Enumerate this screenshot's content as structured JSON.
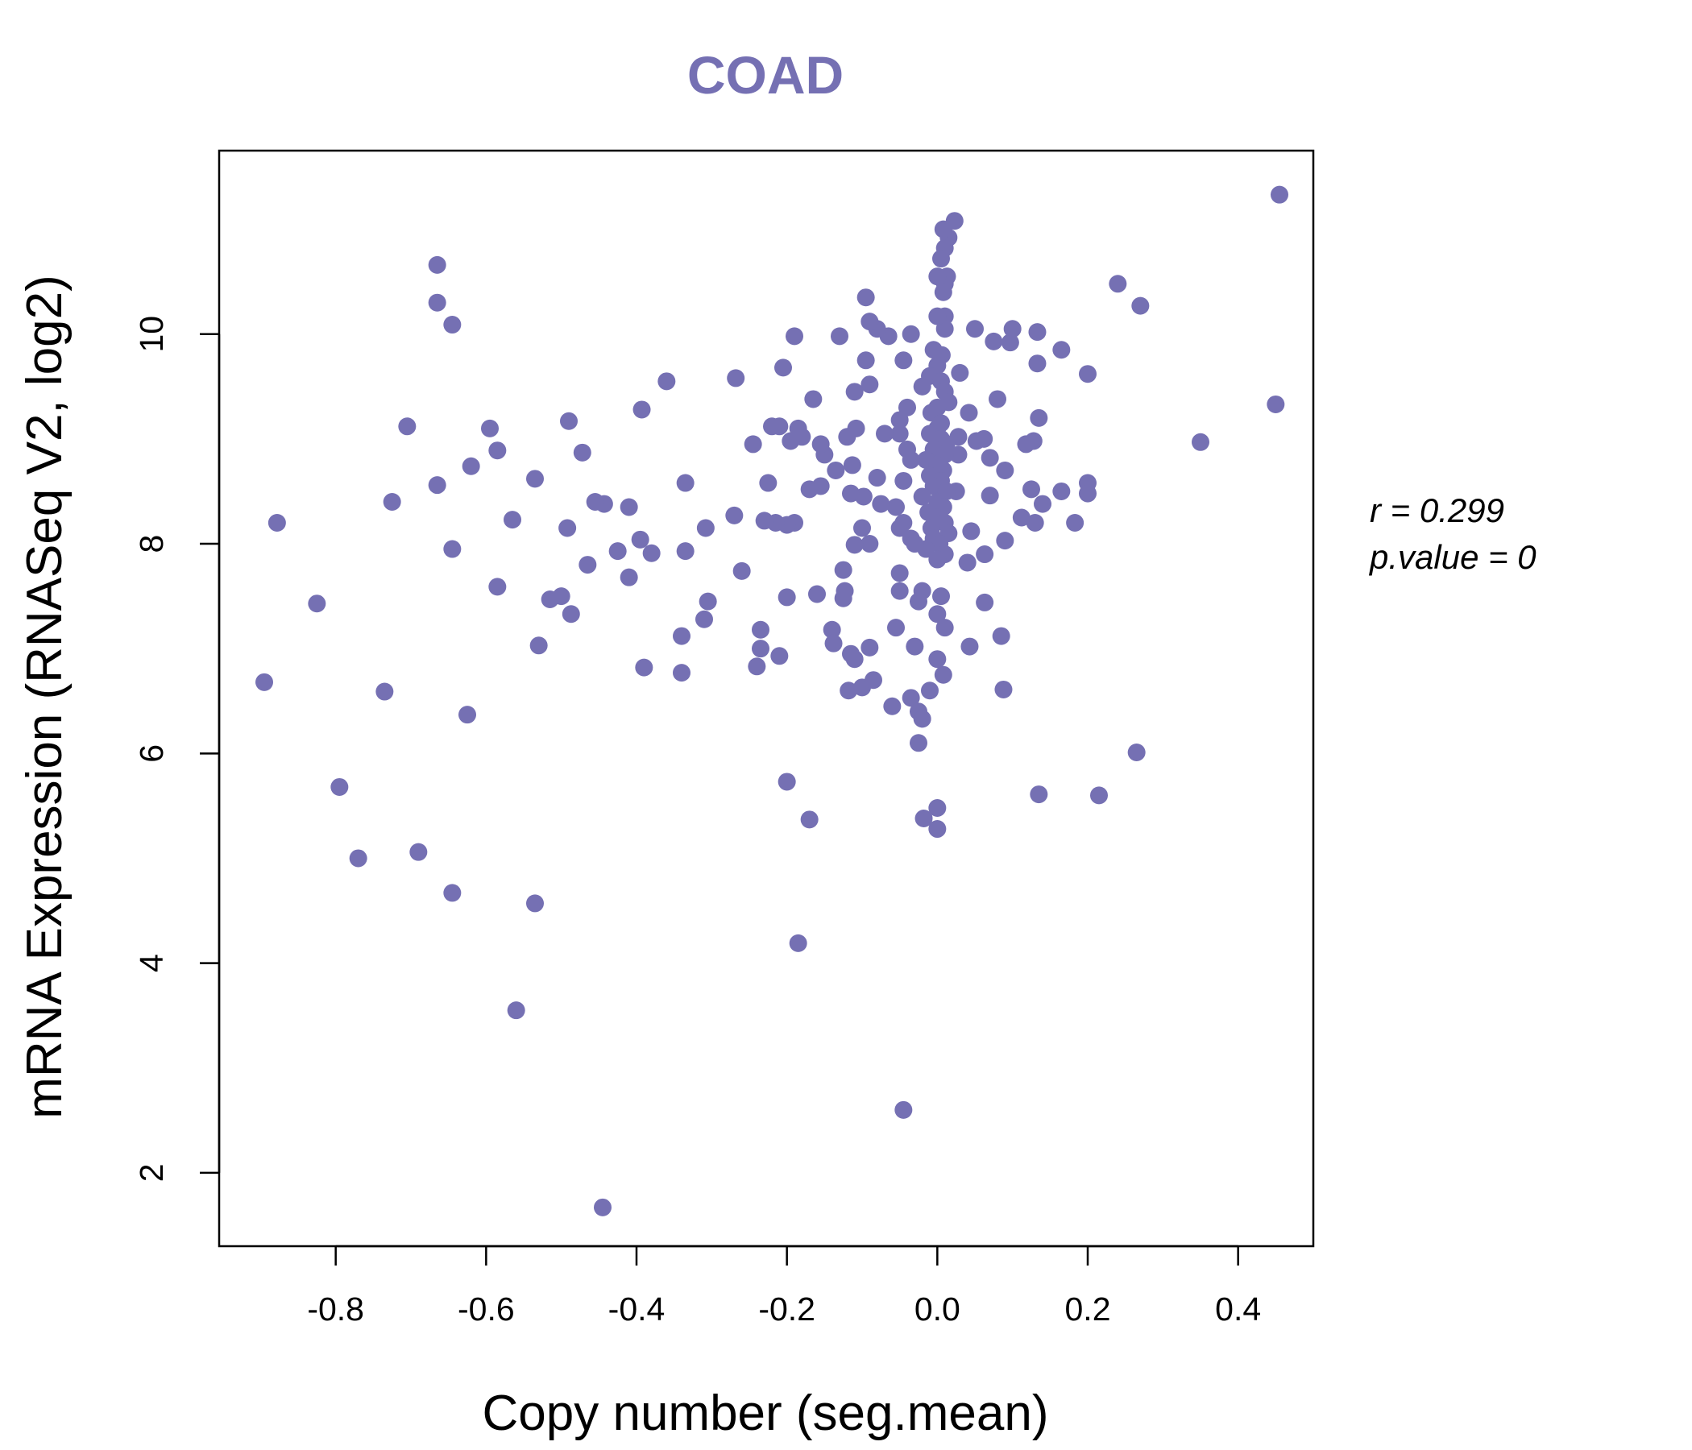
{
  "colors": {
    "point": "#7570b3",
    "title": "#7570b3",
    "axis": "#000000",
    "background": "#ffffff"
  },
  "stats": {
    "r_label": "r = 0.299",
    "p_label": "p.value = 0"
  },
  "chart_data": {
    "type": "scatter",
    "title": "COAD",
    "xlabel": "Copy number (seg.mean)",
    "ylabel": "mRNA Expression (RNASeq V2, log2)",
    "xlim": [
      -0.955,
      0.5
    ],
    "ylim": [
      1.3,
      11.75
    ],
    "xticks": [
      -0.8,
      -0.6,
      -0.4,
      -0.2,
      0.0,
      0.2,
      0.4
    ],
    "xtick_labels": [
      "-0.8",
      "-0.6",
      "-0.4",
      "-0.2",
      "0.0",
      "0.2",
      "0.4"
    ],
    "yticks": [
      2,
      4,
      6,
      8,
      10
    ],
    "ytick_labels": [
      "2",
      "4",
      "6",
      "8",
      "10"
    ],
    "grid": false,
    "points": [
      [
        0.455,
        11.33
      ],
      [
        0.45,
        9.33
      ],
      [
        0.35,
        8.97
      ],
      [
        0.27,
        10.27
      ],
      [
        0.24,
        10.48
      ],
      [
        0.265,
        6.01
      ],
      [
        0.215,
        5.6
      ],
      [
        0.2,
        9.62
      ],
      [
        0.2,
        8.58
      ],
      [
        0.2,
        8.48
      ],
      [
        0.183,
        8.2
      ],
      [
        0.165,
        9.85
      ],
      [
        0.165,
        8.5
      ],
      [
        0.14,
        8.38
      ],
      [
        0.133,
        10.02
      ],
      [
        0.133,
        9.72
      ],
      [
        0.135,
        9.2
      ],
      [
        0.128,
        8.98
      ],
      [
        0.125,
        8.52
      ],
      [
        0.13,
        8.2
      ],
      [
        0.118,
        8.95
      ],
      [
        0.112,
        8.25
      ],
      [
        0.135,
        5.61
      ],
      [
        0.1,
        10.05
      ],
      [
        0.097,
        9.92
      ],
      [
        0.09,
        8.7
      ],
      [
        0.09,
        8.03
      ],
      [
        0.085,
        7.12
      ],
      [
        0.088,
        6.61
      ],
      [
        0.08,
        9.38
      ],
      [
        0.075,
        9.93
      ],
      [
        0.07,
        8.82
      ],
      [
        0.07,
        8.46
      ],
      [
        0.062,
        9.0
      ],
      [
        0.063,
        7.9
      ],
      [
        0.063,
        7.44
      ],
      [
        0.05,
        10.05
      ],
      [
        0.052,
        8.98
      ],
      [
        0.045,
        8.12
      ],
      [
        0.043,
        7.02
      ],
      [
        0.042,
        9.25
      ],
      [
        0.04,
        7.82
      ],
      [
        0.03,
        9.63
      ],
      [
        0.028,
        9.02
      ],
      [
        0.028,
        8.85
      ],
      [
        0.025,
        8.5
      ],
      [
        0.023,
        11.08
      ],
      [
        0.015,
        10.92
      ],
      [
        0.013,
        10.55
      ],
      [
        0.01,
        10.48
      ],
      [
        0.008,
        11.0
      ],
      [
        0.01,
        10.82
      ],
      [
        0.005,
        10.72
      ],
      [
        0.0,
        10.55
      ],
      [
        0.008,
        10.4
      ],
      [
        0.01,
        10.17
      ],
      [
        0.01,
        10.05
      ],
      [
        0.0,
        10.17
      ],
      [
        0.006,
        9.8
      ],
      [
        0.0,
        9.7
      ],
      [
        -0.005,
        9.85
      ],
      [
        -0.01,
        9.6
      ],
      [
        0.005,
        9.55
      ],
      [
        0.01,
        9.45
      ],
      [
        0.015,
        9.35
      ],
      [
        0.0,
        9.3
      ],
      [
        -0.008,
        9.25
      ],
      [
        -0.02,
        9.5
      ],
      [
        0.005,
        9.15
      ],
      [
        0.0,
        9.1
      ],
      [
        -0.01,
        9.05
      ],
      [
        0.005,
        9.0
      ],
      [
        0.012,
        8.95
      ],
      [
        -0.005,
        8.9
      ],
      [
        0.01,
        8.85
      ],
      [
        -0.015,
        8.8
      ],
      [
        0.0,
        8.75
      ],
      [
        0.008,
        8.7
      ],
      [
        -0.01,
        8.65
      ],
      [
        0.005,
        8.6
      ],
      [
        -0.005,
        8.55
      ],
      [
        0.012,
        8.5
      ],
      [
        -0.02,
        8.45
      ],
      [
        0.0,
        8.4
      ],
      [
        0.008,
        8.35
      ],
      [
        -0.012,
        8.3
      ],
      [
        0.0,
        8.25
      ],
      [
        0.01,
        8.2
      ],
      [
        -0.008,
        8.15
      ],
      [
        0.015,
        8.1
      ],
      [
        -0.005,
        8.05
      ],
      [
        0.003,
        8.0
      ],
      [
        -0.015,
        7.95
      ],
      [
        0.01,
        7.9
      ],
      [
        0.0,
        7.85
      ],
      [
        -0.02,
        7.55
      ],
      [
        -0.025,
        7.45
      ],
      [
        0.0,
        7.33
      ],
      [
        0.005,
        7.5
      ],
      [
        0.01,
        7.2
      ],
      [
        -0.03,
        7.02
      ],
      [
        0.0,
        6.9
      ],
      [
        0.008,
        6.75
      ],
      [
        -0.01,
        6.6
      ],
      [
        -0.035,
        6.53
      ],
      [
        -0.025,
        6.4
      ],
      [
        -0.02,
        6.33
      ],
      [
        -0.025,
        6.1
      ],
      [
        -0.018,
        5.38
      ],
      [
        0.0,
        5.48
      ],
      [
        0.0,
        5.28
      ],
      [
        -0.045,
        2.6
      ],
      [
        -0.035,
        10.0
      ],
      [
        -0.045,
        9.75
      ],
      [
        -0.04,
        9.3
      ],
      [
        -0.05,
        9.18
      ],
      [
        -0.05,
        9.05
      ],
      [
        -0.04,
        8.9
      ],
      [
        -0.035,
        8.8
      ],
      [
        -0.045,
        8.6
      ],
      [
        -0.055,
        8.35
      ],
      [
        -0.045,
        8.2
      ],
      [
        -0.05,
        8.15
      ],
      [
        -0.035,
        8.05
      ],
      [
        -0.03,
        8.0
      ],
      [
        -0.05,
        7.72
      ],
      [
        -0.05,
        7.55
      ],
      [
        -0.055,
        7.2
      ],
      [
        -0.06,
        6.45
      ],
      [
        -0.065,
        9.98
      ],
      [
        -0.07,
        9.05
      ],
      [
        -0.08,
        10.05
      ],
      [
        -0.09,
        10.12
      ],
      [
        -0.095,
        10.35
      ],
      [
        -0.095,
        9.75
      ],
      [
        -0.09,
        9.52
      ],
      [
        -0.09,
        8.0
      ],
      [
        -0.1,
        8.15
      ],
      [
        -0.098,
        8.45
      ],
      [
        -0.11,
        9.45
      ],
      [
        -0.108,
        9.1
      ],
      [
        -0.113,
        8.75
      ],
      [
        -0.115,
        8.48
      ],
      [
        -0.11,
        7.99
      ],
      [
        -0.12,
        9.02
      ],
      [
        -0.125,
        7.75
      ],
      [
        -0.123,
        7.55
      ],
      [
        -0.125,
        7.48
      ],
      [
        -0.13,
        9.98
      ],
      [
        -0.135,
        8.7
      ],
      [
        -0.14,
        7.18
      ],
      [
        -0.138,
        7.05
      ],
      [
        -0.115,
        6.95
      ],
      [
        -0.11,
        6.9
      ],
      [
        -0.118,
        6.6
      ],
      [
        -0.1,
        6.63
      ],
      [
        -0.085,
        6.7
      ],
      [
        -0.08,
        8.63
      ],
      [
        -0.075,
        8.38
      ],
      [
        -0.09,
        7.01
      ],
      [
        -0.15,
        8.85
      ],
      [
        -0.155,
        8.95
      ],
      [
        -0.155,
        8.55
      ],
      [
        -0.16,
        7.52
      ],
      [
        -0.165,
        9.38
      ],
      [
        -0.17,
        8.52
      ],
      [
        -0.18,
        9.02
      ],
      [
        -0.185,
        9.1
      ],
      [
        -0.19,
        8.2
      ],
      [
        -0.19,
        9.98
      ],
      [
        -0.195,
        8.98
      ],
      [
        -0.2,
        7.49
      ],
      [
        -0.2,
        8.18
      ],
      [
        -0.205,
        9.68
      ],
      [
        -0.21,
        9.12
      ],
      [
        -0.215,
        8.2
      ],
      [
        -0.22,
        9.12
      ],
      [
        -0.225,
        8.58
      ],
      [
        -0.23,
        8.22
      ],
      [
        -0.235,
        7.18
      ],
      [
        -0.235,
        7.0
      ],
      [
        -0.24,
        6.83
      ],
      [
        -0.21,
        6.93
      ],
      [
        -0.2,
        5.73
      ],
      [
        -0.17,
        5.37
      ],
      [
        -0.185,
        4.19
      ],
      [
        -0.245,
        8.95
      ],
      [
        -0.26,
        7.74
      ],
      [
        -0.268,
        9.58
      ],
      [
        -0.27,
        8.27
      ],
      [
        -0.305,
        7.45
      ],
      [
        -0.308,
        8.15
      ],
      [
        -0.31,
        7.28
      ],
      [
        -0.335,
        8.58
      ],
      [
        -0.335,
        7.93
      ],
      [
        -0.34,
        7.12
      ],
      [
        -0.34,
        6.77
      ],
      [
        -0.36,
        9.55
      ],
      [
        -0.38,
        7.91
      ],
      [
        -0.39,
        6.82
      ],
      [
        -0.393,
        9.28
      ],
      [
        -0.395,
        8.04
      ],
      [
        -0.41,
        8.35
      ],
      [
        -0.41,
        7.68
      ],
      [
        -0.425,
        7.93
      ],
      [
        -0.443,
        8.38
      ],
      [
        -0.455,
        8.4
      ],
      [
        -0.465,
        7.8
      ],
      [
        -0.472,
        8.87
      ],
      [
        -0.49,
        9.17
      ],
      [
        -0.487,
        7.33
      ],
      [
        -0.492,
        8.15
      ],
      [
        -0.5,
        7.5
      ],
      [
        -0.515,
        7.47
      ],
      [
        -0.53,
        7.03
      ],
      [
        -0.535,
        8.62
      ],
      [
        -0.535,
        4.57
      ],
      [
        -0.56,
        3.55
      ],
      [
        -0.565,
        8.23
      ],
      [
        -0.585,
        8.89
      ],
      [
        -0.585,
        7.59
      ],
      [
        -0.595,
        9.1
      ],
      [
        -0.62,
        8.74
      ],
      [
        -0.625,
        6.37
      ],
      [
        -0.645,
        10.09
      ],
      [
        -0.645,
        7.95
      ],
      [
        -0.645,
        4.67
      ],
      [
        -0.665,
        10.3
      ],
      [
        -0.665,
        10.66
      ],
      [
        -0.665,
        8.56
      ],
      [
        -0.69,
        5.06
      ],
      [
        -0.705,
        9.12
      ],
      [
        -0.725,
        8.4
      ],
      [
        -0.735,
        6.59
      ],
      [
        -0.77,
        5.0
      ],
      [
        -0.795,
        5.68
      ],
      [
        -0.825,
        7.43
      ],
      [
        -0.878,
        8.2
      ],
      [
        -0.895,
        6.68
      ],
      [
        -0.445,
        1.67
      ]
    ]
  }
}
